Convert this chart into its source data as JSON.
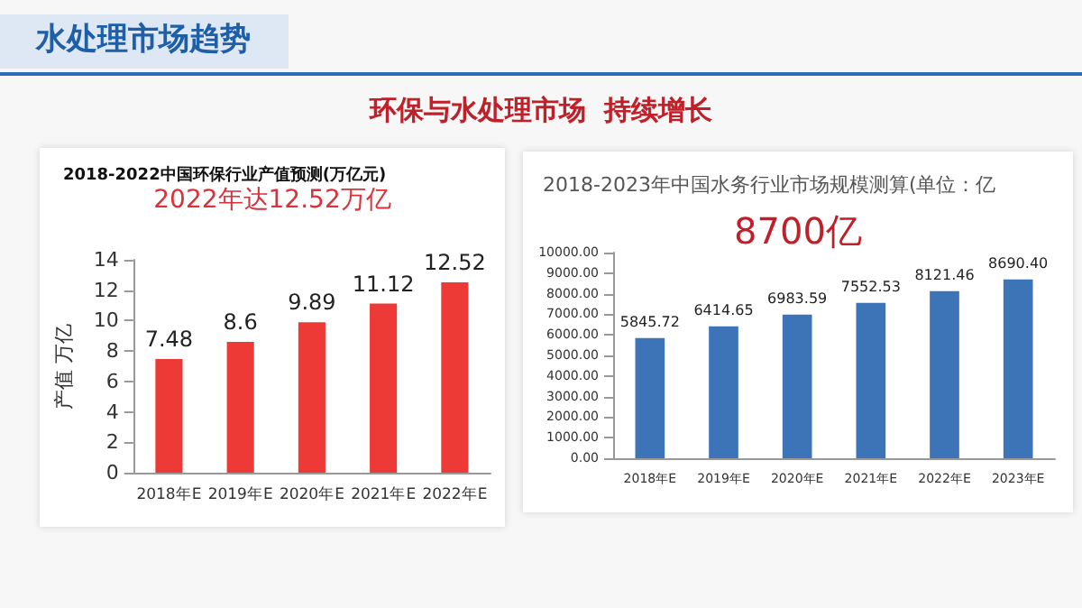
{
  "chart_data": [
    {
      "type": "other",
      "title": "水处理市场趋势",
      "subtitle": "环保与水处理市场  持续增长"
    },
    {
      "type": "bar",
      "title": "2018-2022中国环保行业产值预测(万亿元)",
      "ylabel": "产值 万亿",
      "categories": [
        "2018年E",
        "2019年E",
        "2020年E",
        "2021年E",
        "2022年E"
      ],
      "values": [
        7.48,
        8.6,
        9.89,
        11.12,
        12.52
      ],
      "color": "#ee3a36",
      "ylim": [
        0,
        14
      ],
      "yticks": [
        0,
        2,
        4,
        6,
        8,
        10,
        12,
        14
      ],
      "data_labels": true,
      "annotations": [
        "2022年达12.52万亿"
      ]
    },
    {
      "type": "bar",
      "title": "2018-2023年中国水务行业市场规模测算(单位：亿",
      "categories": [
        "2018年E",
        "2019年E",
        "2020年E",
        "2021年E",
        "2022年E",
        "2023年E"
      ],
      "values": [
        5845.72,
        6414.65,
        6983.59,
        7552.53,
        8121.46,
        8690.4
      ],
      "value_labels": [
        "5845.72",
        "6414.65",
        "6983.59",
        "7552.53",
        "8121.46",
        "8690.40"
      ],
      "color": "#3d74b8",
      "ylim": [
        0,
        10000
      ],
      "yticks": [
        {
          "value": 0,
          "label": "0.00"
        },
        {
          "value": 1000,
          "label": "1000.00"
        },
        {
          "value": 2000,
          "label": "2000.00"
        },
        {
          "value": 3000,
          "label": "3000.00"
        },
        {
          "value": 4000,
          "label": "4000.00"
        },
        {
          "value": 5000,
          "label": "5000.00"
        },
        {
          "value": 6000,
          "label": "6000.00"
        },
        {
          "value": 7000,
          "label": "7000.00"
        },
        {
          "value": 8000,
          "label": "8000.00"
        },
        {
          "value": 9000,
          "label": "9000.00"
        },
        {
          "value": 10000,
          "label": "10000.00"
        }
      ],
      "annotations": [
        "8700亿"
      ]
    }
  ]
}
